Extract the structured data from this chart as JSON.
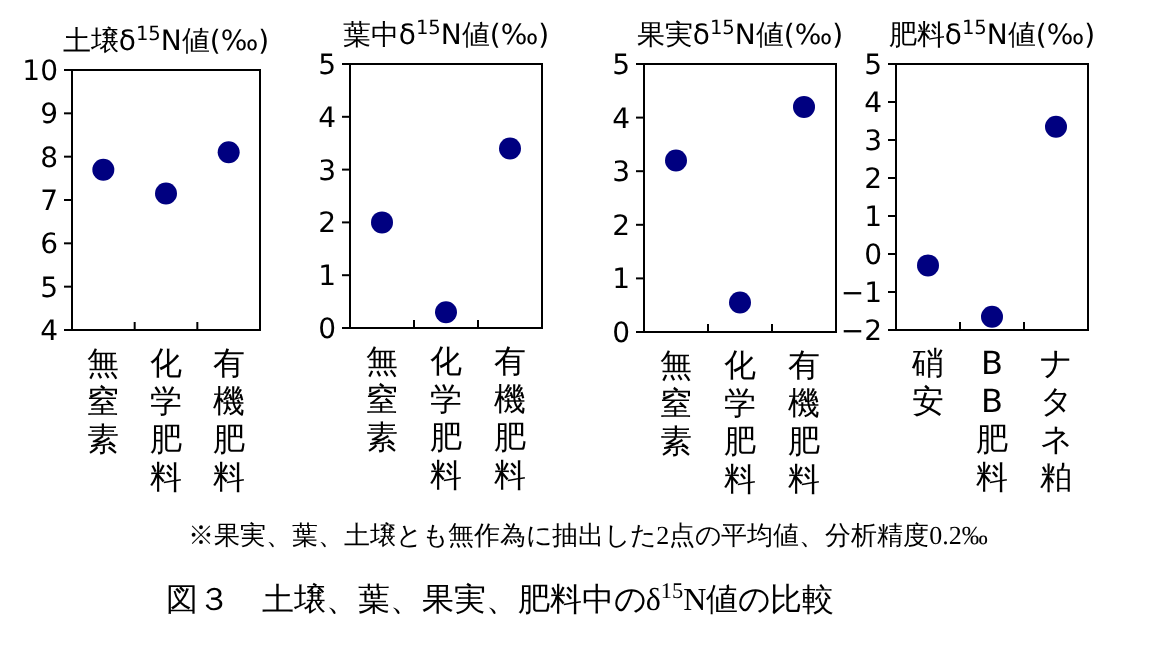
{
  "chart_data": [
    {
      "type": "scatter",
      "title": "土壌δ$^{15}$N値(‰)",
      "categories": [
        "無窒素",
        "化学肥料",
        "有機肥料"
      ],
      "values": [
        7.7,
        7.15,
        8.1
      ],
      "color": "#000080",
      "marker": "circle",
      "ylim": [
        4,
        10
      ],
      "yticks": [
        4,
        5,
        6,
        7,
        8,
        9,
        10
      ]
    },
    {
      "type": "scatter",
      "title": "葉中δ$^{15}$N値(‰)",
      "categories": [
        "無窒素",
        "化学肥料",
        "有機肥料"
      ],
      "values": [
        2.0,
        0.3,
        3.4
      ],
      "color": "#000080",
      "marker": "circle",
      "ylim": [
        0,
        5
      ],
      "yticks": [
        0,
        1,
        2,
        3,
        4,
        5
      ]
    },
    {
      "type": "scatter",
      "title": "果実δ$^{15}$N値(‰)",
      "categories": [
        "無窒素",
        "化学肥料",
        "有機肥料"
      ],
      "values": [
        3.2,
        0.55,
        4.2
      ],
      "color": "#000080",
      "marker": "circle",
      "ylim": [
        0,
        5
      ],
      "yticks": [
        0,
        1,
        2,
        3,
        4,
        5
      ]
    },
    {
      "type": "scatter",
      "title": "肥料δ$^{15}$N値(‰)",
      "categories": [
        "硝安",
        "BB肥料",
        "ナタネ粕"
      ],
      "values": [
        -0.3,
        -1.65,
        3.35
      ],
      "color": "#000080",
      "marker": "circle",
      "ylim": [
        -2,
        5
      ],
      "yticks": [
        -2,
        -1,
        0,
        1,
        2,
        3,
        4,
        5
      ]
    },
    {
      "type": "other",
      "annotations": [
        "※果実、葉、土壌とも無作為に抽出した2点の平均値、分析精度0.2‰",
        "図３　土壌、葉、果実、肥料中のδ$^{15}$N値の比較"
      ]
    }
  ]
}
